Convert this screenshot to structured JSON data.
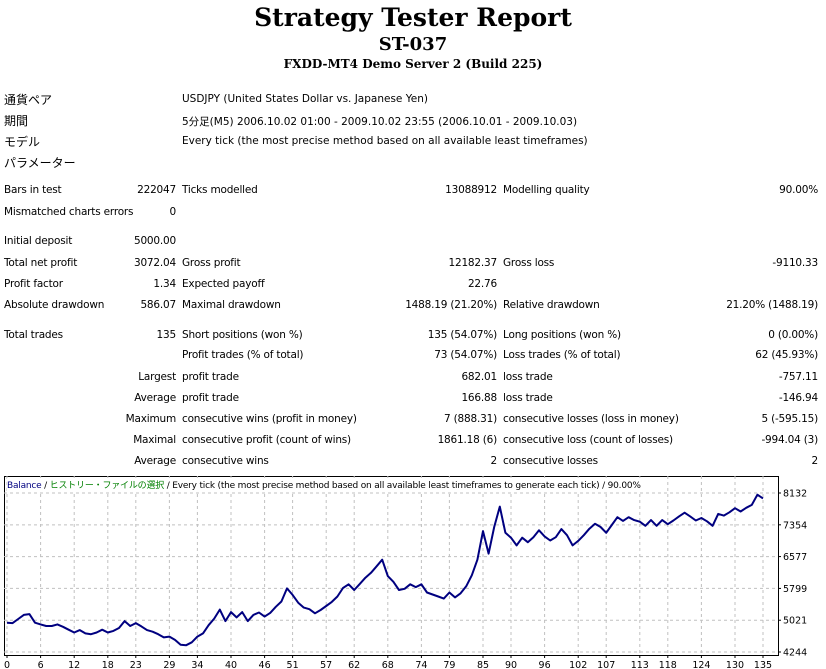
{
  "header": {
    "title": "Strategy Tester Report",
    "expert": "ST-037",
    "server": "FXDD-MT4 Demo Server 2 (Build 225)"
  },
  "info": [
    {
      "label": "通貨ペア",
      "value": "USDJPY (United States Dollar vs. Japanese Yen)"
    },
    {
      "label": "期間",
      "value": "5分足(M5) 2006.10.02 01:00 - 2009.10.02 23:55 (2006.10.01 - 2009.10.03)"
    },
    {
      "label": "モデル",
      "value": "Every tick (the most precise method based on all available least timeframes)"
    },
    {
      "label": "パラメーター",
      "value": ""
    }
  ],
  "stats": [
    [
      "Bars in test",
      "222047",
      "Ticks modelled",
      "13088912",
      "Modelling quality",
      "90.00%"
    ],
    [
      "Mismatched charts errors",
      "0",
      "",
      "",
      "",
      ""
    ],
    [
      "Initial deposit",
      "5000.00",
      "",
      "",
      "",
      ""
    ],
    [
      "Total net profit",
      "3072.04",
      "Gross profit",
      "12182.37",
      "Gross loss",
      "-9110.33"
    ],
    [
      "Profit factor",
      "1.34",
      "Expected payoff",
      "22.76",
      "",
      ""
    ],
    [
      "Absolute drawdown",
      "586.07",
      "Maximal drawdown",
      "1488.19 (21.20%)",
      "Relative drawdown",
      "21.20% (1488.19)"
    ],
    [
      "Total trades",
      "135",
      "Short positions (won %)",
      "135 (54.07%)",
      "Long positions (won %)",
      "0 (0.00%)"
    ],
    [
      "",
      "",
      "Profit trades (% of total)",
      "73 (54.07%)",
      "Loss trades (% of total)",
      "62 (45.93%)"
    ],
    [
      "",
      "Largest",
      "profit trade",
      "682.01",
      "loss trade",
      "-757.11"
    ],
    [
      "",
      "Average",
      "profit trade",
      "166.88",
      "loss trade",
      "-146.94"
    ],
    [
      "",
      "Maximum",
      "consecutive wins (profit in money)",
      "7 (888.31)",
      "consecutive losses (loss in money)",
      "5 (-595.15)"
    ],
    [
      "",
      "Maximal",
      "consecutive profit (count of wins)",
      "1861.18 (6)",
      "consecutive loss (count of losses)",
      "-994.04 (3)"
    ],
    [
      "",
      "Average",
      "consecutive wins",
      "2",
      "consecutive losses",
      "2"
    ]
  ],
  "chart_data": {
    "type": "line",
    "legend": {
      "series": "Balance",
      "sep1": " / ",
      "symbol": "ヒストリー・ファイルの選択",
      "rest": " / Every tick (the most precise method based on all available least timeframes to generate each tick) / 90.00%"
    },
    "colors": {
      "line": "#000080",
      "symbol": "#008000",
      "grid": "#c0c0c0"
    },
    "ylim": [
      4244,
      8132
    ],
    "y_ticks": [
      "8132",
      "7354",
      "6577",
      "5799",
      "5021",
      "4244"
    ],
    "x_ticks": [
      "0",
      "6",
      "12",
      "18",
      "23",
      "29",
      "34",
      "40",
      "46",
      "51",
      "57",
      "62",
      "68",
      "74",
      "79",
      "85",
      "90",
      "96",
      "102",
      "107",
      "113",
      "118",
      "124",
      "130",
      "135"
    ],
    "xlim": [
      0,
      135
    ],
    "balance": [
      4960,
      4950,
      5050,
      5150,
      5170,
      4960,
      4920,
      4880,
      4880,
      4920,
      4860,
      4790,
      4720,
      4780,
      4700,
      4680,
      4720,
      4790,
      4720,
      4760,
      4830,
      5000,
      4880,
      4950,
      4870,
      4780,
      4740,
      4680,
      4600,
      4620,
      4540,
      4420,
      4410,
      4480,
      4620,
      4700,
      4900,
      5060,
      5280,
      5000,
      5220,
      5090,
      5220,
      5000,
      5150,
      5210,
      5110,
      5200,
      5350,
      5480,
      5800,
      5640,
      5450,
      5330,
      5290,
      5190,
      5270,
      5370,
      5470,
      5600,
      5810,
      5900,
      5760,
      5910,
      6060,
      6180,
      6340,
      6500,
      6100,
      5960,
      5760,
      5790,
      5900,
      5830,
      5900,
      5700,
      5650,
      5600,
      5550,
      5700,
      5580,
      5680,
      5850,
      6120,
      6500,
      7200,
      6650,
      7300,
      7800,
      7160,
      7040,
      6850,
      7040,
      6930,
      7050,
      7220,
      7070,
      6970,
      7050,
      7250,
      7100,
      6850,
      6960,
      7100,
      7260,
      7380,
      7300,
      7160,
      7350,
      7540,
      7450,
      7540,
      7470,
      7430,
      7330,
      7470,
      7330,
      7470,
      7370,
      7460,
      7560,
      7650,
      7560,
      7460,
      7520,
      7440,
      7330,
      7620,
      7580,
      7660,
      7760,
      7680,
      7770,
      7840,
      8090,
      8000
    ]
  }
}
